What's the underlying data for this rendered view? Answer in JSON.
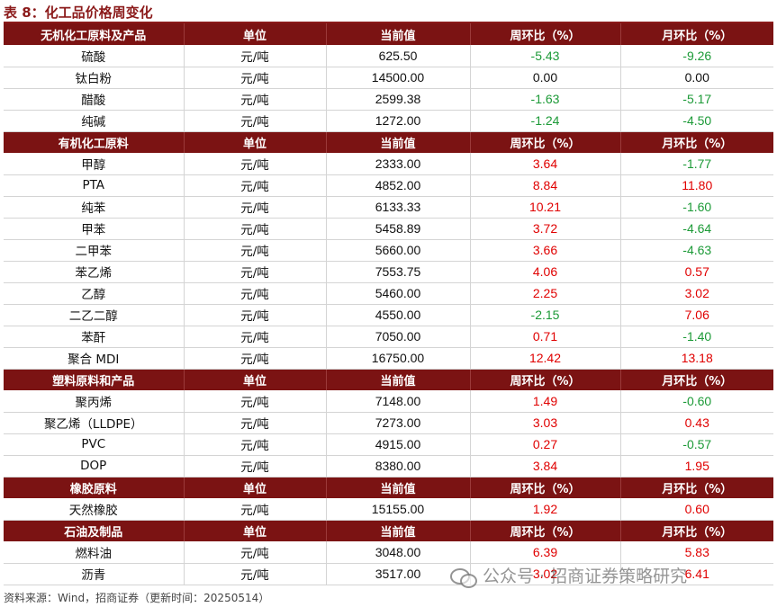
{
  "title": "表 8：化工品价格周变化",
  "colors": {
    "header_bg": "#7b1313",
    "title": "#8b1a1a",
    "positive": "#e00000",
    "negative": "#1c9a37"
  },
  "columns": [
    "单位",
    "当前值",
    "周环比（%）",
    "月环比（%）"
  ],
  "sections": [
    {
      "name": "无机化工原料及产品",
      "rows": [
        {
          "name": "硫酸",
          "unit": "元/吨",
          "value": "625.50",
          "wow": "-5.43",
          "mom": "-9.26"
        },
        {
          "name": "钛白粉",
          "unit": "元/吨",
          "value": "14500.00",
          "wow": "0.00",
          "mom": "0.00"
        },
        {
          "name": "醋酸",
          "unit": "元/吨",
          "value": "2599.38",
          "wow": "-1.63",
          "mom": "-5.17"
        },
        {
          "name": "纯碱",
          "unit": "元/吨",
          "value": "1272.00",
          "wow": "-1.24",
          "mom": "-4.50"
        }
      ]
    },
    {
      "name": "有机化工原料",
      "rows": [
        {
          "name": "甲醇",
          "unit": "元/吨",
          "value": "2333.00",
          "wow": "3.64",
          "mom": "-1.77"
        },
        {
          "name": "PTA",
          "unit": "元/吨",
          "value": "4852.00",
          "wow": "8.84",
          "mom": "11.80"
        },
        {
          "name": "纯苯",
          "unit": "元/吨",
          "value": "6133.33",
          "wow": "10.21",
          "mom": "-1.60"
        },
        {
          "name": "甲苯",
          "unit": "元/吨",
          "value": "5458.89",
          "wow": "3.72",
          "mom": "-4.64"
        },
        {
          "name": "二甲苯",
          "unit": "元/吨",
          "value": "5660.00",
          "wow": "3.66",
          "mom": "-4.63"
        },
        {
          "name": "苯乙烯",
          "unit": "元/吨",
          "value": "7553.75",
          "wow": "4.06",
          "mom": "0.57"
        },
        {
          "name": "乙醇",
          "unit": "元/吨",
          "value": "5460.00",
          "wow": "2.25",
          "mom": "3.02"
        },
        {
          "name": "二乙二醇",
          "unit": "元/吨",
          "value": "4550.00",
          "wow": "-2.15",
          "mom": "7.06"
        },
        {
          "name": "苯酐",
          "unit": "元/吨",
          "value": "7050.00",
          "wow": "0.71",
          "mom": "-1.40"
        },
        {
          "name": "聚合 MDI",
          "unit": "元/吨",
          "value": "16750.00",
          "wow": "12.42",
          "mom": "13.18"
        }
      ]
    },
    {
      "name": "塑料原料和产品",
      "rows": [
        {
          "name": "聚丙烯",
          "unit": "元/吨",
          "value": "7148.00",
          "wow": "1.49",
          "mom": "-0.60"
        },
        {
          "name": "聚乙烯（LLDPE）",
          "unit": "元/吨",
          "value": "7273.00",
          "wow": "3.03",
          "mom": "0.43"
        },
        {
          "name": "PVC",
          "unit": "元/吨",
          "value": "4915.00",
          "wow": "0.27",
          "mom": "-0.57"
        },
        {
          "name": "DOP",
          "unit": "元/吨",
          "value": "8380.00",
          "wow": "3.84",
          "mom": "1.95"
        }
      ]
    },
    {
      "name": "橡胶原料",
      "rows": [
        {
          "name": "天然橡胶",
          "unit": "元/吨",
          "value": "15155.00",
          "wow": "1.92",
          "mom": "0.60"
        }
      ]
    },
    {
      "name": "石油及制品",
      "rows": [
        {
          "name": "燃料油",
          "unit": "元/吨",
          "value": "3048.00",
          "wow": "6.39",
          "mom": "5.83"
        },
        {
          "name": "沥青",
          "unit": "元/吨",
          "value": "3517.00",
          "wow": "3.02",
          "mom": "6.41"
        }
      ]
    }
  ],
  "source": "资料来源：Wind，招商证券（更新时间：20250514）",
  "watermark": {
    "icon": "wechat-icon",
    "text": "公众号 · 招商证券策略研究"
  }
}
